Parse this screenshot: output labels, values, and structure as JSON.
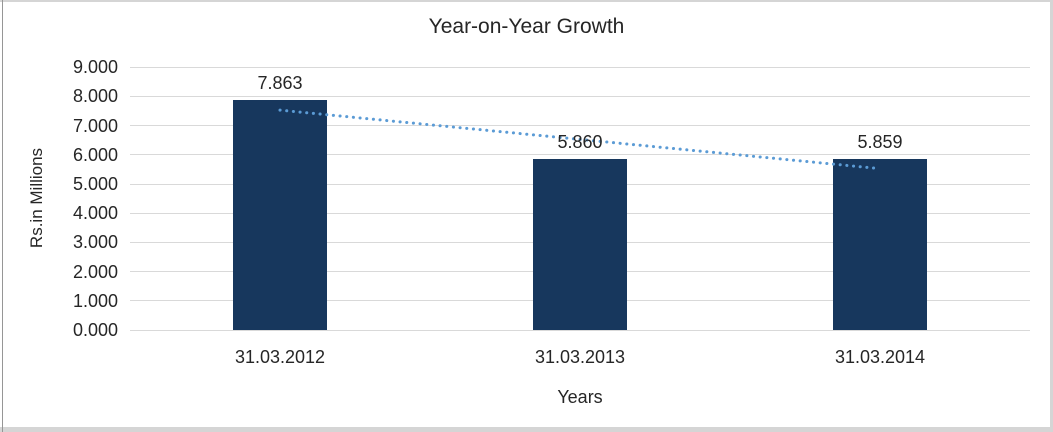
{
  "page": {
    "background": "#ffffff",
    "edge_color": "#d5d5d5"
  },
  "chart_data": {
    "type": "bar",
    "title": "Year-on-Year Growth",
    "categories": [
      "31.03.2012",
      "31.03.2013",
      "31.03.2014"
    ],
    "values": [
      7.863,
      5.86,
      5.859
    ],
    "data_labels": [
      "7.863",
      "5.860",
      "5.859"
    ],
    "xlabel": "Years",
    "ylabel": "Rs.in Millions",
    "ylim": [
      0,
      9
    ],
    "ytick_interval": 1,
    "ytick_labels": [
      "0.000",
      "1.000",
      "2.000",
      "3.000",
      "4.000",
      "5.000",
      "6.000",
      "7.000",
      "8.000",
      "9.000"
    ],
    "grid": true,
    "legend": "none",
    "bar_color": "#17375D",
    "gridline_color": "#D9D9D9",
    "text_color": "#262626",
    "trendline": {
      "type": "linear",
      "style": "dotted",
      "color": "#5B9BD5"
    }
  }
}
